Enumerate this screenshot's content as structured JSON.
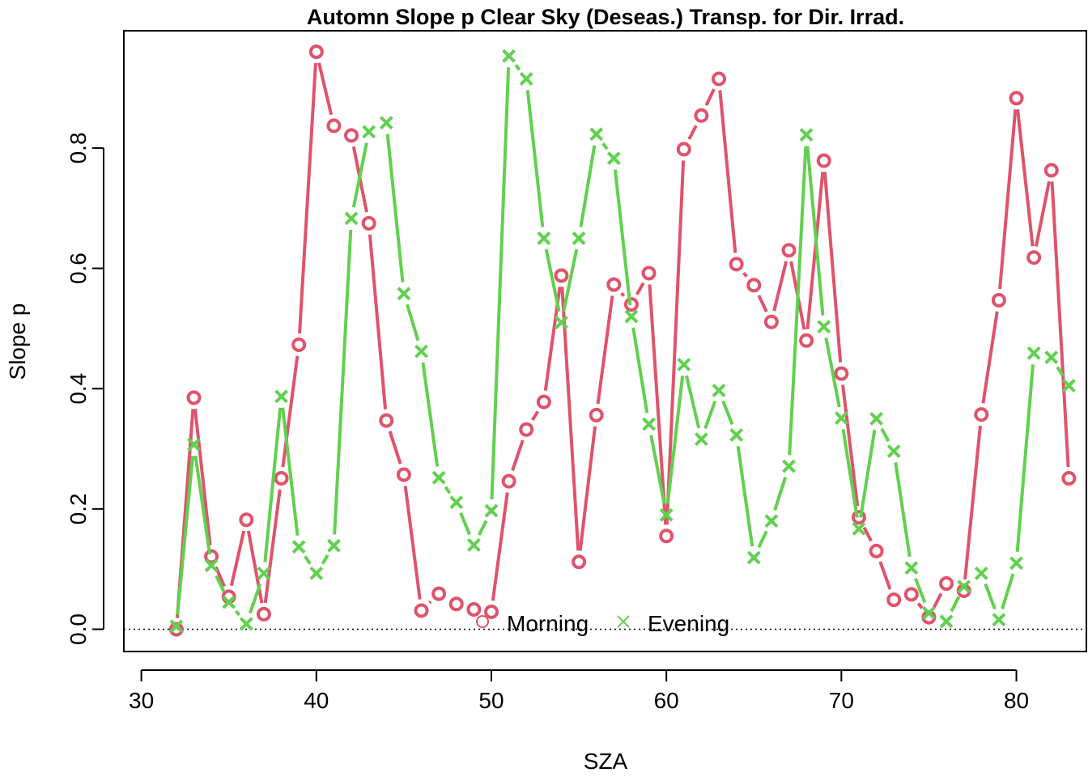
{
  "chart_data": {
    "type": "line",
    "title": "Automn Slope p Clear Sky (Deseas.) Transp. for Dir. Irrad.",
    "xlabel": "SZA",
    "ylabel": "Slope p",
    "xlim": [
      29,
      84
    ],
    "ylim": [
      -0.037,
      0.995
    ],
    "x_ticks": [
      30,
      40,
      50,
      60,
      70,
      80
    ],
    "y_ticks": [
      0.0,
      0.2,
      0.4,
      0.6,
      0.8
    ],
    "y_tick_labels": [
      "0.0",
      "0.2",
      "0.4",
      "0.6",
      "0.8"
    ],
    "reference_line": {
      "y": 0,
      "style": "dotted"
    },
    "legend": {
      "placement": "bottom-center",
      "horizontal": true
    },
    "x": [
      32,
      33,
      34,
      35,
      36,
      37,
      38,
      39,
      40,
      41,
      42,
      43,
      44,
      45,
      46,
      47,
      48,
      49,
      50,
      51,
      52,
      53,
      54,
      55,
      56,
      57,
      58,
      59,
      60,
      61,
      62,
      63,
      64,
      65,
      66,
      67,
      68,
      69,
      70,
      71,
      72,
      73,
      74,
      75,
      76,
      77,
      78,
      79,
      80,
      81,
      82,
      83
    ],
    "series": [
      {
        "name": "Morning",
        "color": "#DF536B",
        "marker": "circle",
        "values": [
          0.0,
          0.385,
          0.121,
          0.054,
          0.182,
          0.025,
          0.251,
          0.473,
          0.96,
          0.837,
          0.821,
          0.675,
          0.347,
          0.257,
          0.031,
          0.059,
          0.042,
          0.033,
          0.029,
          0.246,
          0.332,
          0.378,
          0.588,
          0.112,
          0.356,
          0.573,
          0.54,
          0.592,
          0.155,
          0.798,
          0.854,
          0.915,
          0.607,
          0.572,
          0.511,
          0.63,
          0.48,
          0.779,
          0.425,
          0.186,
          0.13,
          0.049,
          0.058,
          0.02,
          0.076,
          0.064,
          0.357,
          0.547,
          0.883,
          0.618,
          0.763,
          0.251
        ]
      },
      {
        "name": "Evening",
        "color": "#61D04F",
        "marker": "cross",
        "values": [
          0.005,
          0.307,
          0.106,
          0.045,
          0.009,
          0.093,
          0.387,
          0.137,
          0.093,
          0.139,
          0.683,
          0.827,
          0.842,
          0.558,
          0.462,
          0.252,
          0.211,
          0.14,
          0.197,
          0.953,
          0.915,
          0.65,
          0.51,
          0.65,
          0.823,
          0.783,
          0.52,
          0.341,
          0.19,
          0.44,
          0.316,
          0.397,
          0.323,
          0.119,
          0.18,
          0.271,
          0.822,
          0.503,
          0.351,
          0.167,
          0.35,
          0.296,
          0.102,
          0.027,
          0.013,
          0.071,
          0.093,
          0.016,
          0.11,
          0.459,
          0.452,
          0.405
        ]
      }
    ]
  }
}
